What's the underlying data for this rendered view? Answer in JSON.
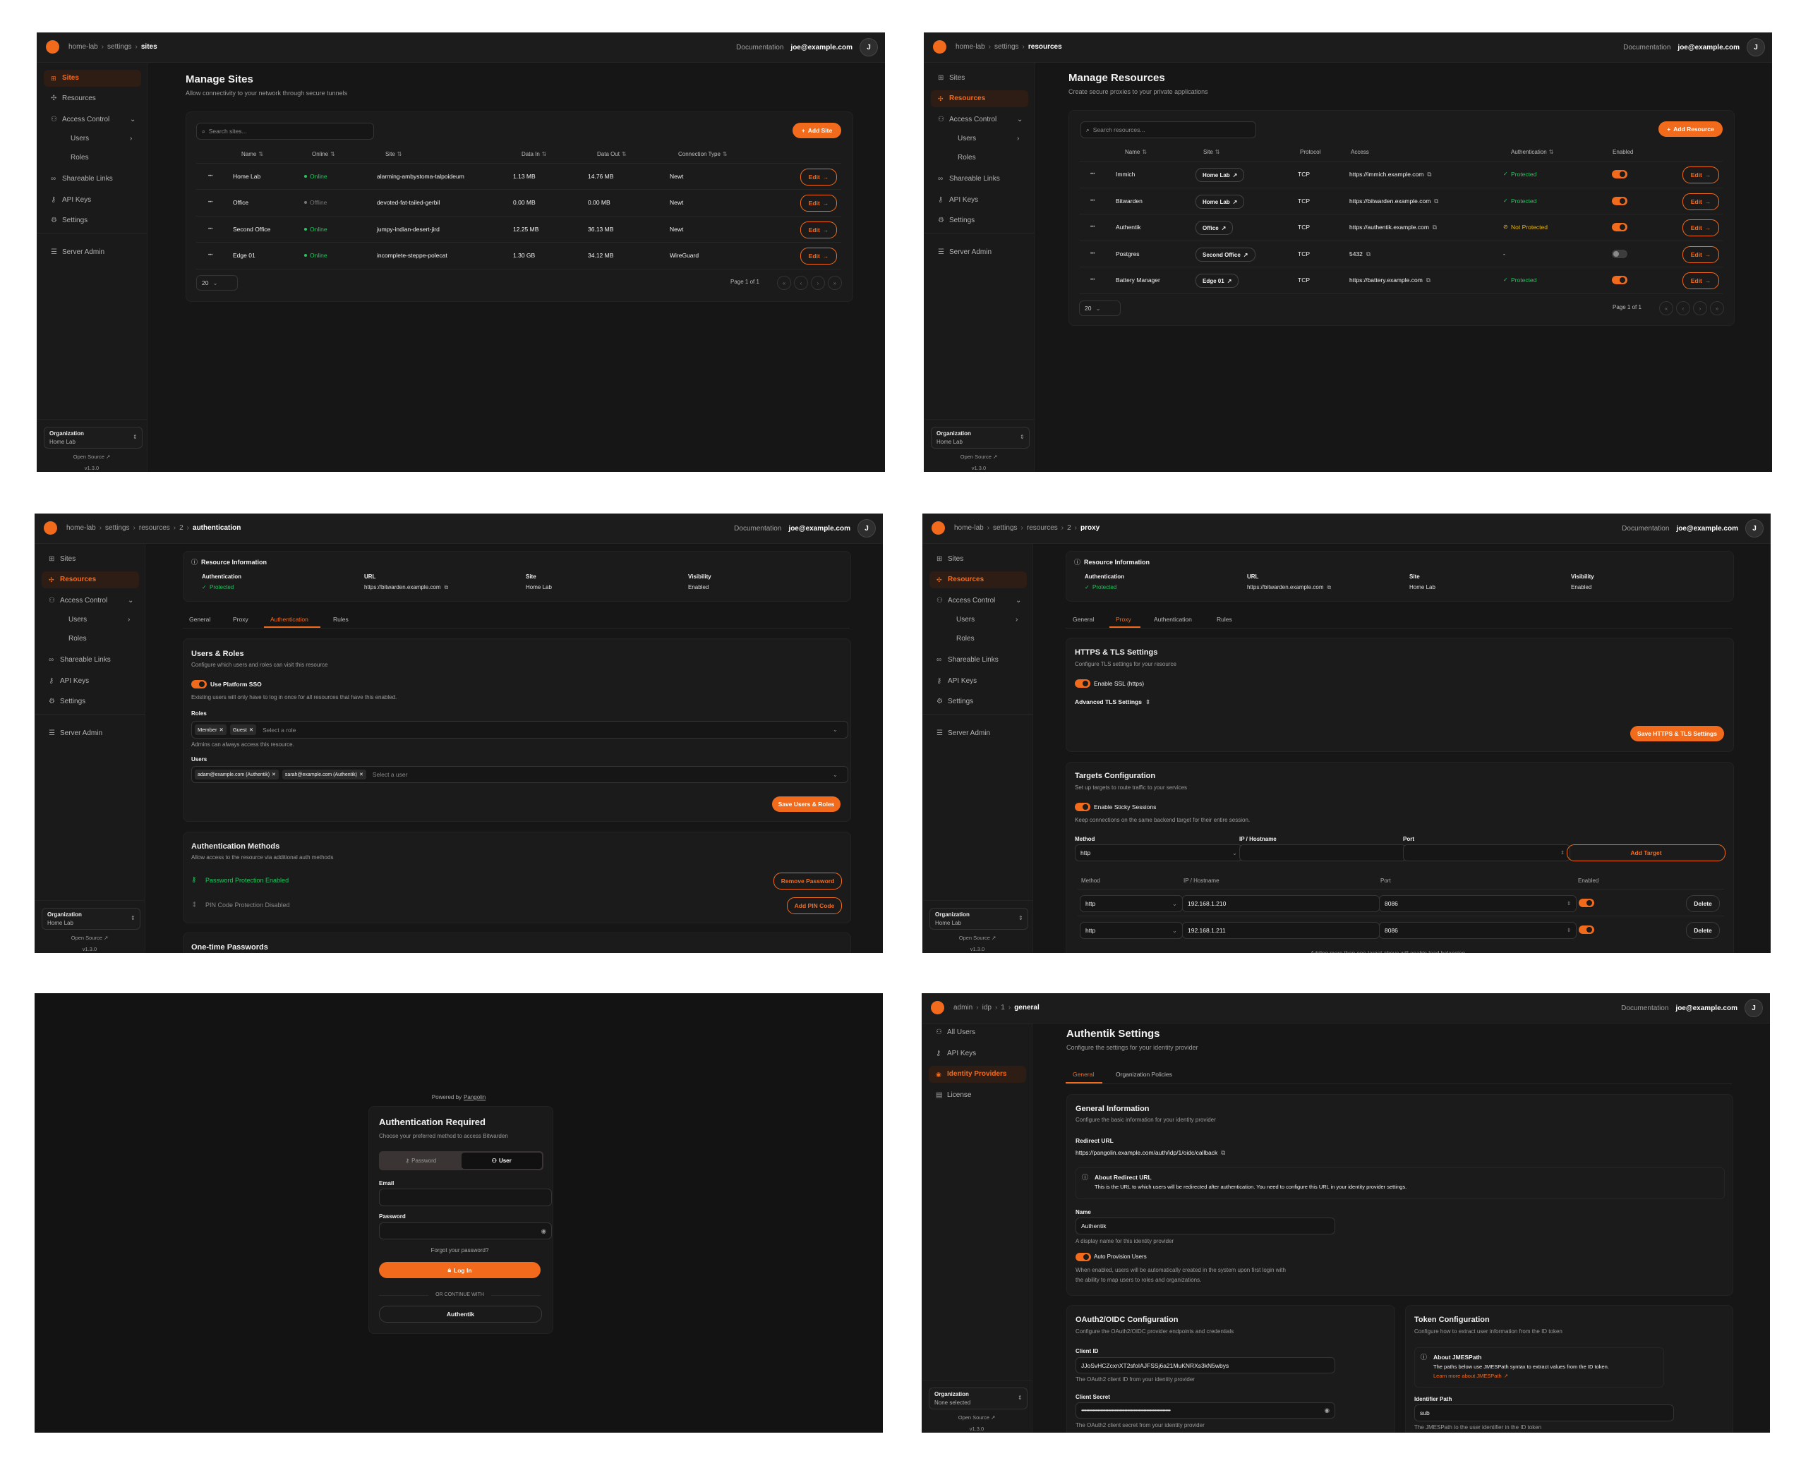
{
  "colors": {
    "accent": "#f26b1d",
    "online": "#22c55e",
    "warning": "#eab308",
    "background": "#161616",
    "sidebar": "#1a1a1a",
    "card": "#1b1b1b"
  },
  "common": {
    "documentation": "Documentation",
    "user_email": "joe@example.com",
    "avatar_initial": "J",
    "org_label": "Organization",
    "open_source": "Open Source",
    "version": "v1.3.0",
    "edit_label": "Edit",
    "page_size": "20",
    "page_label": "Page 1 of 1",
    "org_sidebar": [
      {
        "label": "Sites",
        "icon": "sites-icon"
      },
      {
        "label": "Resources",
        "icon": "resources-icon"
      },
      {
        "label": "Access Control",
        "icon": "users-icon",
        "chevron": "down"
      },
      {
        "label": "Users",
        "sub": true,
        "chevron": "right"
      },
      {
        "label": "Roles",
        "sub": true
      },
      {
        "label": "Shareable Links",
        "icon": "link-icon"
      },
      {
        "label": "API Keys",
        "icon": "key-icon"
      },
      {
        "label": "Settings",
        "icon": "gear-icon"
      },
      {
        "label": "Server Admin",
        "icon": "server-icon"
      }
    ],
    "admin_sidebar": [
      {
        "label": "All Users",
        "icon": "users-icon"
      },
      {
        "label": "API Keys",
        "icon": "key-icon"
      },
      {
        "label": "Identity Providers",
        "icon": "fingerprint-icon"
      },
      {
        "label": "License",
        "icon": "license-icon"
      }
    ],
    "resource_info": {
      "title": "Resource Information",
      "fields": [
        {
          "label": "Authentication",
          "value": "Protected"
        },
        {
          "label": "URL",
          "value": "https://bitwarden.example.com"
        },
        {
          "label": "Site",
          "value": "Home Lab"
        },
        {
          "label": "Visibility",
          "value": "Enabled"
        }
      ]
    },
    "resource_tabs": [
      "General",
      "Proxy",
      "Authentication",
      "Rules"
    ]
  },
  "sites": {
    "breadcrumb": [
      "home-lab",
      "settings",
      "sites"
    ],
    "active_sidebar": "Sites",
    "org_value": "Home Lab",
    "title": "Manage Sites",
    "subtitle": "Allow connectivity to your network through secure tunnels",
    "search_placeholder": "Search sites...",
    "add_label": "Add Site",
    "columns": [
      "Name",
      "Online",
      "Site",
      "Data In",
      "Data Out",
      "Connection Type"
    ],
    "rows": [
      {
        "name": "Home Lab",
        "status": "Online",
        "online": true,
        "site": "alarming-ambystoma-talpoideum",
        "data_in": "1.13 MB",
        "data_out": "14.76 MB",
        "type": "Newt"
      },
      {
        "name": "Office",
        "status": "Offline",
        "online": false,
        "site": "devoted-fat-tailed-gerbil",
        "data_in": "0.00 MB",
        "data_out": "0.00 MB",
        "type": "Newt"
      },
      {
        "name": "Second Office",
        "status": "Online",
        "online": true,
        "site": "jumpy-indian-desert-jird",
        "data_in": "12.25 MB",
        "data_out": "36.13 MB",
        "type": "Newt"
      },
      {
        "name": "Edge 01",
        "status": "Online",
        "online": true,
        "site": "incomplete-steppe-polecat",
        "data_in": "1.30 GB",
        "data_out": "34.12 MB",
        "type": "WireGuard"
      }
    ]
  },
  "resources": {
    "breadcrumb": [
      "home-lab",
      "settings",
      "resources"
    ],
    "active_sidebar": "Resources",
    "org_value": "Home Lab",
    "title": "Manage Resources",
    "subtitle": "Create secure proxies to your private applications",
    "search_placeholder": "Search resources...",
    "add_label": "Add Resource",
    "columns": [
      "Name",
      "Site",
      "Protocol",
      "Access",
      "Authentication",
      "Enabled"
    ],
    "rows": [
      {
        "name": "Immich",
        "site": "Home Lab",
        "protocol": "TCP",
        "access": "https://immich.example.com",
        "auth": "Protected",
        "auth_status": "protected",
        "enabled": true
      },
      {
        "name": "Bitwarden",
        "site": "Home Lab",
        "protocol": "TCP",
        "access": "https://bitwarden.example.com",
        "auth": "Protected",
        "auth_status": "protected",
        "enabled": true
      },
      {
        "name": "Authentik",
        "site": "Office",
        "protocol": "TCP",
        "access": "https://authentik.example.com",
        "auth": "Not Protected",
        "auth_status": "not-protected",
        "enabled": true
      },
      {
        "name": "Postgres",
        "site": "Second Office",
        "protocol": "TCP",
        "access": "5432",
        "auth": "-",
        "auth_status": "none",
        "enabled": false
      },
      {
        "name": "Battery Manager",
        "site": "Edge 01",
        "protocol": "TCP",
        "access": "https://battery.example.com",
        "auth": "Protected",
        "auth_status": "protected",
        "enabled": true
      }
    ]
  },
  "auth": {
    "breadcrumb": [
      "home-lab",
      "settings",
      "resources",
      "2",
      "authentication"
    ],
    "active_sidebar": "Resources",
    "org_value": "Home Lab",
    "active_tab": "Authentication",
    "users_roles": {
      "title": "Users & Roles",
      "desc": "Configure which users and roles can visit this resource",
      "sso_label": "Use Platform SSO",
      "sso_enabled": true,
      "sso_help": "Existing users will only have to log in once for all resources that have this enabled.",
      "roles_label": "Roles",
      "roles": [
        "Member",
        "Guest"
      ],
      "roles_placeholder": "Select a role",
      "roles_help": "Admins can always access this resource.",
      "users_label": "Users",
      "users": [
        "adam@example.com (Authentik)",
        "sarah@example.com (Authentik)"
      ],
      "users_placeholder": "Select a user",
      "save_label": "Save Users & Roles"
    },
    "auth_methods": {
      "title": "Authentication Methods",
      "desc": "Allow access to the resource via additional auth methods",
      "password_status": "Password Protection Enabled",
      "remove_password": "Remove Password",
      "pin_status": "PIN Code Protection Disabled",
      "add_pin": "Add PIN Code"
    },
    "otp_title": "One-time Passwords"
  },
  "proxy": {
    "breadcrumb": [
      "home-lab",
      "settings",
      "resources",
      "2",
      "proxy"
    ],
    "active_sidebar": "Resources",
    "org_value": "Home Lab",
    "active_tab": "Proxy",
    "tls": {
      "title": "HTTPS & TLS Settings",
      "desc": "Configure TLS settings for your resource",
      "ssl_label": "Enable SSL (https)",
      "ssl_enabled": true,
      "advanced_label": "Advanced TLS Settings",
      "save_label": "Save HTTPS & TLS Settings"
    },
    "targets": {
      "title": "Targets Configuration",
      "desc": "Set up targets to route traffic to your services",
      "sticky_label": "Enable Sticky Sessions",
      "sticky_enabled": true,
      "sticky_help": "Keep connections on the same backend target for their entire session.",
      "method_label": "Method",
      "method_value": "http",
      "ip_label": "IP / Hostname",
      "port_label": "Port",
      "add_label": "Add Target",
      "columns": [
        "Method",
        "IP / Hostname",
        "Port",
        "Enabled"
      ],
      "rows": [
        {
          "method": "http",
          "ip": "192.168.1.210",
          "port": "8086",
          "enabled": true
        },
        {
          "method": "http",
          "ip": "192.168.1.211",
          "port": "8086",
          "enabled": true
        }
      ],
      "delete_label": "Delete",
      "footer": "Adding more than one target above will enable load balancing."
    }
  },
  "login": {
    "powered_by": "Powered by",
    "brand": "Pangolin",
    "title": "Authentication Required",
    "desc": "Choose your preferred method to access Bitwarden",
    "tabs": [
      "Password",
      "User"
    ],
    "active_tab": "User",
    "email_label": "Email",
    "password_label": "Password",
    "forgot": "Forgot your password?",
    "login_label": "Log In",
    "divider": "OR CONTINUE WITH",
    "provider": "Authentik"
  },
  "idp": {
    "breadcrumb": [
      "admin",
      "idp",
      "1",
      "general"
    ],
    "active_sidebar": "Identity Providers",
    "org_value": "None selected",
    "title": "Authentik Settings",
    "subtitle": "Configure the settings for your identity provider",
    "tabs": [
      "General",
      "Organization Policies"
    ],
    "active_tab": "General",
    "general": {
      "title": "General Information",
      "desc": "Configure the basic information for your identity provider",
      "redirect_label": "Redirect URL",
      "redirect_url": "https://pangolin.example.com/auth/idp/1/oidc/callback",
      "about_title": "About Redirect URL",
      "about_text": "This is the URL to which users will be redirected after authentication. You need to configure this URL in your identity provider settings.",
      "name_label": "Name",
      "name_value": "Authentik",
      "name_help": "A display name for this identity provider",
      "auto_label": "Auto Provision Users",
      "auto_enabled": true,
      "auto_help_1": "When enabled, users will be automatically created in the system upon first login with",
      "auto_help_2": "the ability to map users to roles and organizations."
    },
    "oauth": {
      "title": "OAuth2/OIDC Configuration",
      "desc": "Configure the OAuth2/OIDC provider endpoints and credentials",
      "client_id_label": "Client ID",
      "client_id": "JJoSvHCZcxnXT2sfoIAJFSSj6a21MuKNRXs3kN5wbys",
      "client_id_help": "The OAuth2 client ID from your identity provider",
      "secret_label": "Client Secret",
      "secret_help": "The OAuth2 client secret from your identity provider"
    },
    "token": {
      "title": "Token Configuration",
      "desc": "Configure how to extract user information from the ID token",
      "about_title": "About JMESPath",
      "about_text": "The paths below use JMESPath syntax to extract values from the ID token.",
      "learn_more": "Learn more about JMESPath",
      "identifier_label": "Identifier Path",
      "identifier_value": "sub",
      "identifier_help": "The JMESPath to the user identifier in the ID token"
    }
  }
}
